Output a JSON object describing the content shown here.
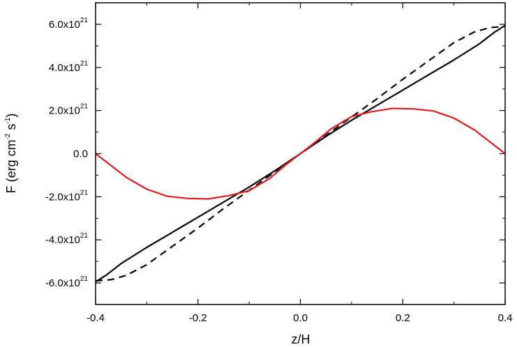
{
  "chart_data": {
    "type": "line",
    "title": "",
    "xlabel": "z/H",
    "ylabel": {
      "prefix": "F (erg cm",
      "exp1": "-2",
      "mid": " s",
      "exp2": "-1",
      "suffix": ")"
    },
    "xlim": [
      -0.4,
      0.4
    ],
    "ylim": [
      -7e+21,
      7e+21
    ],
    "grid": false,
    "legend": "none",
    "x_ticks": [
      {
        "value": -0.4,
        "label": "-0.4"
      },
      {
        "value": -0.2,
        "label": "-0.2"
      },
      {
        "value": 0.0,
        "label": "0.0"
      },
      {
        "value": 0.2,
        "label": "0.2"
      },
      {
        "value": 0.4,
        "label": "0.4"
      }
    ],
    "y_ticks": [
      {
        "value": 6e+21,
        "mant": "6.0x10",
        "exp": "21"
      },
      {
        "value": 4e+21,
        "mant": "4.0x10",
        "exp": "21"
      },
      {
        "value": 2e+21,
        "mant": "2.0x10",
        "exp": "21"
      },
      {
        "value": 0.0,
        "mant": "0.0",
        "exp": ""
      },
      {
        "value": -2e+21,
        "mant": "-2.0x10",
        "exp": "21"
      },
      {
        "value": -4e+21,
        "mant": "-4.0x10",
        "exp": "21"
      },
      {
        "value": -6e+21,
        "mant": "-6.0x10",
        "exp": "21"
      }
    ],
    "series": [
      {
        "style": "solid",
        "color": "#000000",
        "points": [
          [
            -0.4,
            -5.95e+21
          ],
          [
            -0.38,
            -5.65e+21
          ],
          [
            -0.35,
            -5.1e+21
          ],
          [
            -0.3,
            -4.35e+21
          ],
          [
            -0.25,
            -3.65e+21
          ],
          [
            -0.2,
            -2.95e+21
          ],
          [
            -0.15,
            -2.25e+21
          ],
          [
            -0.1,
            -1.55e+21
          ],
          [
            -0.05,
            -8e+20
          ],
          [
            0.0,
            0.0
          ],
          [
            0.05,
            8e+20
          ],
          [
            0.1,
            1.55e+21
          ],
          [
            0.15,
            2.25e+21
          ],
          [
            0.2,
            2.95e+21
          ],
          [
            0.25,
            3.65e+21
          ],
          [
            0.3,
            4.35e+21
          ],
          [
            0.35,
            5.1e+21
          ],
          [
            0.38,
            5.65e+21
          ],
          [
            0.4,
            5.95e+21
          ]
        ]
      },
      {
        "style": "dashed",
        "color": "#000000",
        "points": [
          [
            -0.4,
            -5.9e+21
          ],
          [
            -0.37,
            -5.85e+21
          ],
          [
            -0.34,
            -5.65e+21
          ],
          [
            -0.3,
            -5.15e+21
          ],
          [
            -0.25,
            -4.3e+21
          ],
          [
            -0.2,
            -3.45e+21
          ],
          [
            -0.15,
            -2.55e+21
          ],
          [
            -0.1,
            -1.7e+21
          ],
          [
            -0.05,
            -8.5e+20
          ],
          [
            0.0,
            0.0
          ],
          [
            0.05,
            8.5e+20
          ],
          [
            0.1,
            1.7e+21
          ],
          [
            0.15,
            2.55e+21
          ],
          [
            0.2,
            3.45e+21
          ],
          [
            0.25,
            4.3e+21
          ],
          [
            0.3,
            5.15e+21
          ],
          [
            0.34,
            5.65e+21
          ],
          [
            0.37,
            5.85e+21
          ],
          [
            0.4,
            5.9e+21
          ]
        ]
      },
      {
        "style": "solid",
        "color": "#e8191c",
        "points": [
          [
            -0.4,
            0.0
          ],
          [
            -0.37,
            -5.5e+20
          ],
          [
            -0.34,
            -1.1e+21
          ],
          [
            -0.3,
            -1.65e+21
          ],
          [
            -0.26,
            -1.98e+21
          ],
          [
            -0.22,
            -2.08e+21
          ],
          [
            -0.18,
            -2.1e+21
          ],
          [
            -0.14,
            -1.95e+21
          ],
          [
            -0.1,
            -1.72e+21
          ],
          [
            -0.06,
            -1.15e+21
          ],
          [
            -0.03,
            -5.5e+20
          ],
          [
            0.0,
            0.0
          ],
          [
            0.03,
            5.5e+20
          ],
          [
            0.06,
            1.15e+21
          ],
          [
            0.1,
            1.72e+21
          ],
          [
            0.14,
            1.95e+21
          ],
          [
            0.18,
            2.1e+21
          ],
          [
            0.22,
            2.08e+21
          ],
          [
            0.26,
            1.98e+21
          ],
          [
            0.3,
            1.65e+21
          ],
          [
            0.34,
            1.1e+21
          ],
          [
            0.37,
            5.5e+20
          ],
          [
            0.4,
            0.0
          ]
        ]
      }
    ]
  }
}
